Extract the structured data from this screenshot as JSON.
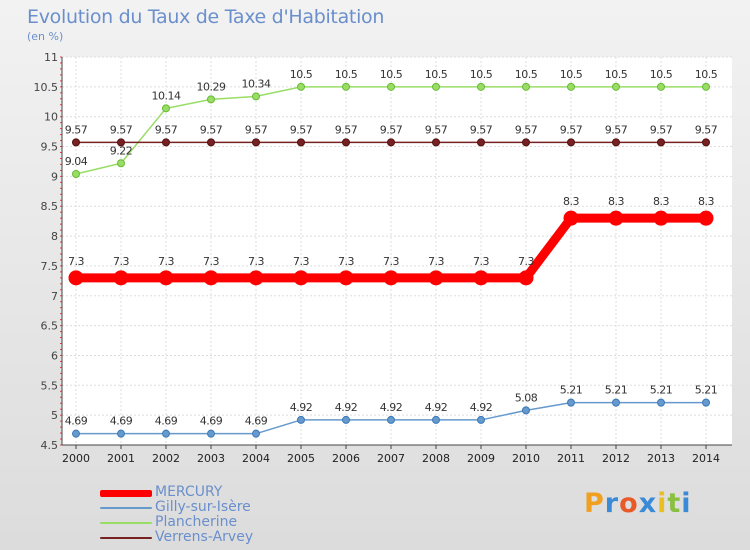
{
  "title": "Evolution du Taux de Taxe d'Habitation",
  "subtitle": "(en %)",
  "brand": {
    "letters": [
      "P",
      "r",
      "o",
      "x",
      "i",
      "t",
      "i"
    ],
    "colors": [
      "#f0a020",
      "#3a8ad8",
      "#e85a28",
      "#3a8ad8",
      "#e8c020",
      "#8ac040",
      "#3a8ad8"
    ]
  },
  "chart_data": {
    "type": "line",
    "title": "Evolution du Taux de Taxe d'Habitation",
    "ylabel": "(en %)",
    "xlabel": "",
    "ylim": [
      4.5,
      11
    ],
    "yticks": [
      "4.5",
      "5",
      "5.5",
      "6",
      "6.5",
      "7",
      "7.5",
      "8",
      "8.5",
      "9",
      "9.5",
      "10",
      "10.5",
      "11"
    ],
    "categories": [
      "2000",
      "2001",
      "2002",
      "2003",
      "2004",
      "2005",
      "2006",
      "2007",
      "2008",
      "2009",
      "2010",
      "2011",
      "2012",
      "2013",
      "2014"
    ],
    "series": [
      {
        "name": "MERCURY",
        "color": "#ff0000",
        "values": [
          7.3,
          7.3,
          7.3,
          7.3,
          7.3,
          7.3,
          7.3,
          7.3,
          7.3,
          7.3,
          7.3,
          8.3,
          8.3,
          8.3,
          8.3
        ],
        "labels": [
          "7.3",
          "7.3",
          "7.3",
          "7.3",
          "7.3",
          "7.3",
          "7.3",
          "7.3",
          "7.3",
          "7.3",
          "7.3",
          "8.3",
          "8.3",
          "8.3",
          "8.3"
        ]
      },
      {
        "name": "Gilly-sur-Isère",
        "color": "#6699cc",
        "values": [
          4.69,
          4.69,
          4.69,
          4.69,
          4.69,
          4.92,
          4.92,
          4.92,
          4.92,
          4.92,
          5.08,
          5.21,
          5.21,
          5.21,
          5.21
        ],
        "labels": [
          "4.69",
          "4.69",
          "4.69",
          "4.69",
          "4.69",
          "4.92",
          "4.92",
          "4.92",
          "4.92",
          "4.92",
          "5.08",
          "5.21",
          "5.21",
          "5.21",
          "5.21"
        ]
      },
      {
        "name": "Plancherine",
        "color": "#99dd66",
        "values": [
          9.04,
          9.22,
          10.14,
          10.29,
          10.34,
          10.5,
          10.5,
          10.5,
          10.5,
          10.5,
          10.5,
          10.5,
          10.5,
          10.5,
          10.5
        ],
        "labels": [
          "9.04",
          "9.22",
          "10.14",
          "10.29",
          "10.34",
          "10.5",
          "10.5",
          "10.5",
          "10.5",
          "10.5",
          "10.5",
          "10.5",
          "10.5",
          "10.5",
          "10.5"
        ]
      },
      {
        "name": "Verrens-Arvey",
        "color": "#772222",
        "values": [
          9.57,
          9.57,
          9.57,
          9.57,
          9.57,
          9.57,
          9.57,
          9.57,
          9.57,
          9.57,
          9.57,
          9.57,
          9.57,
          9.57,
          9.57
        ],
        "labels": [
          "9.57",
          "9.57",
          "9.57",
          "9.57",
          "9.57",
          "9.57",
          "9.57",
          "9.57",
          "9.57",
          "9.57",
          "9.57",
          "9.57",
          "9.57",
          "9.57",
          "9.57"
        ]
      }
    ],
    "grid": true,
    "legend_position": "bottom-left"
  }
}
